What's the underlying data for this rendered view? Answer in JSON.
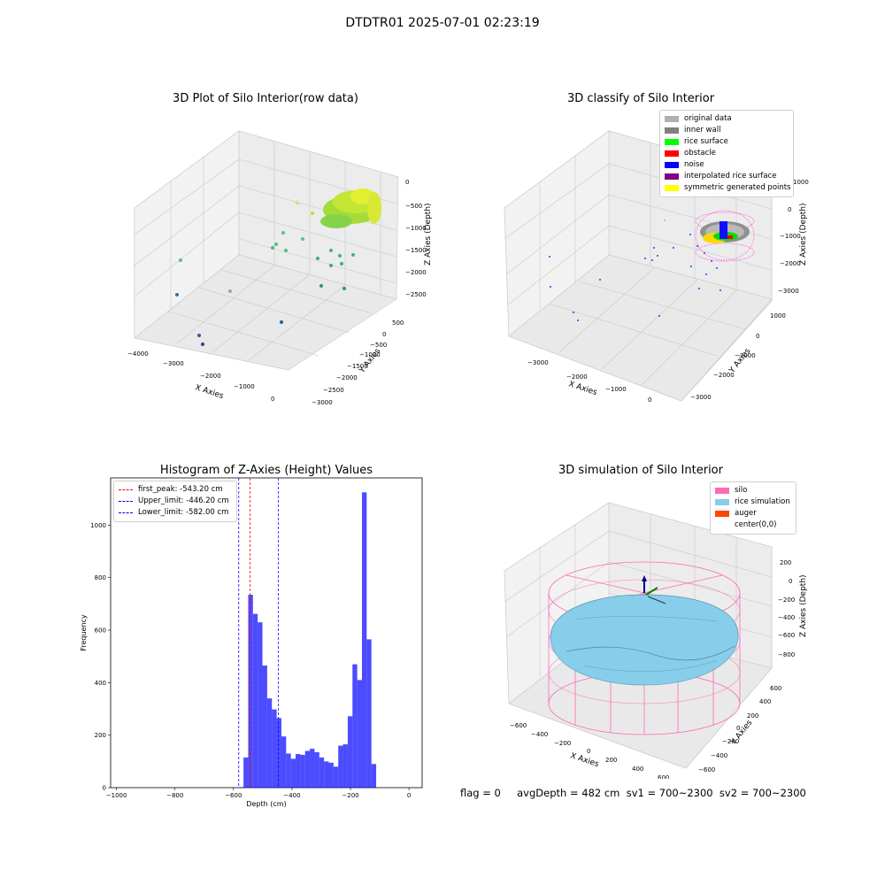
{
  "figure": {
    "suptitle": "DTDTR01 2025-07-01 02:23:19"
  },
  "panels": {
    "raw": {
      "title": "3D Plot of Silo Interior(row data)",
      "xlabel": "X Axies",
      "ylabel": "Y Axies",
      "zlabel": "Z Axies (Depth)",
      "xticks": [
        "−4000",
        "−3000",
        "−2000",
        "−1000",
        "0"
      ],
      "yticks": [
        "500",
        "0",
        "−500",
        "−1000",
        "−1500",
        "−2000",
        "−2500",
        "−3000"
      ],
      "zticks": [
        "0",
        "−500",
        "−1000",
        "−1500",
        "−2000",
        "−2500"
      ]
    },
    "classify": {
      "title": "3D classify of Silo Interior",
      "xlabel": "X Axies",
      "ylabel": "Y Axies",
      "zlabel": "Z Axies (Depth)",
      "xticks": [
        "−3000",
        "−2000",
        "−1000",
        "0"
      ],
      "yticks": [
        "1000",
        "0",
        "−1000",
        "−2000",
        "−3000"
      ],
      "zticks": [
        "1000",
        "0",
        "−1000",
        "−2000",
        "−3000"
      ],
      "legend": [
        {
          "label": "original data",
          "color": "#b0b0b0"
        },
        {
          "label": "inner wall",
          "color": "#808080"
        },
        {
          "label": "rice surface",
          "color": "#00ff00"
        },
        {
          "label": "obstacle",
          "color": "#ff0000"
        },
        {
          "label": "noise",
          "color": "#0000ff"
        },
        {
          "label": "interpolated rice surface",
          "color": "#800080"
        },
        {
          "label": "symmetric generated points",
          "color": "#ffff00"
        }
      ]
    },
    "simulation": {
      "title": "3D simulation of Silo Interior",
      "xlabel": "X Axies",
      "ylabel": "Y Axies",
      "zlabel": "Z Axies (Depth)",
      "xticks": [
        "−600",
        "−400",
        "−200",
        "0",
        "200",
        "400",
        "600"
      ],
      "yticks": [
        "600",
        "400",
        "200",
        "0",
        "−200",
        "−400",
        "−600"
      ],
      "zticks": [
        "200",
        "0",
        "−200",
        "−400",
        "−600",
        "−800"
      ],
      "legend": [
        {
          "label": "silo",
          "color": "#ff69b4"
        },
        {
          "label": "rice simulation",
          "color": "#87ceeb"
        },
        {
          "label": "auger",
          "color": "#ff4500"
        },
        {
          "label": "center(0,0)",
          "color": "#ffffff"
        }
      ]
    }
  },
  "chart_data": [
    {
      "type": "histogram",
      "title": "Histogram of Z-Axies (Height) Values",
      "xlabel": "Depth (cm)",
      "ylabel": "Frequency",
      "xlim": [
        -1020,
        45
      ],
      "ylim": [
        0,
        1180
      ],
      "xticks": [
        -1000,
        -800,
        -600,
        -400,
        -200,
        0
      ],
      "yticks": [
        0,
        200,
        400,
        600,
        800,
        1000
      ],
      "bin_width": 16.2,
      "bin_start": -582,
      "color": "#0000ff",
      "values": [
        2,
        115,
        735,
        662,
        630,
        465,
        340,
        298,
        265,
        195,
        130,
        110,
        128,
        125,
        140,
        148,
        135,
        115,
        100,
        95,
        80,
        160,
        165,
        272,
        470,
        410,
        1125,
        565,
        90
      ],
      "vlines": [
        {
          "label": "first_peak: -543.20 cm",
          "x": -543.2,
          "color": "#ff0000"
        },
        {
          "label": "Upper_limit: -446.20 cm",
          "x": -446.2,
          "color": "#0000ff"
        },
        {
          "label": "Lower_limit: -582.00 cm",
          "x": -582.0,
          "color": "#0000ff"
        }
      ]
    }
  ],
  "footer": {
    "text": "flag = 0     avgDepth = 482 cm  sv1 = 700~2300  sv2 = 700~2300"
  }
}
